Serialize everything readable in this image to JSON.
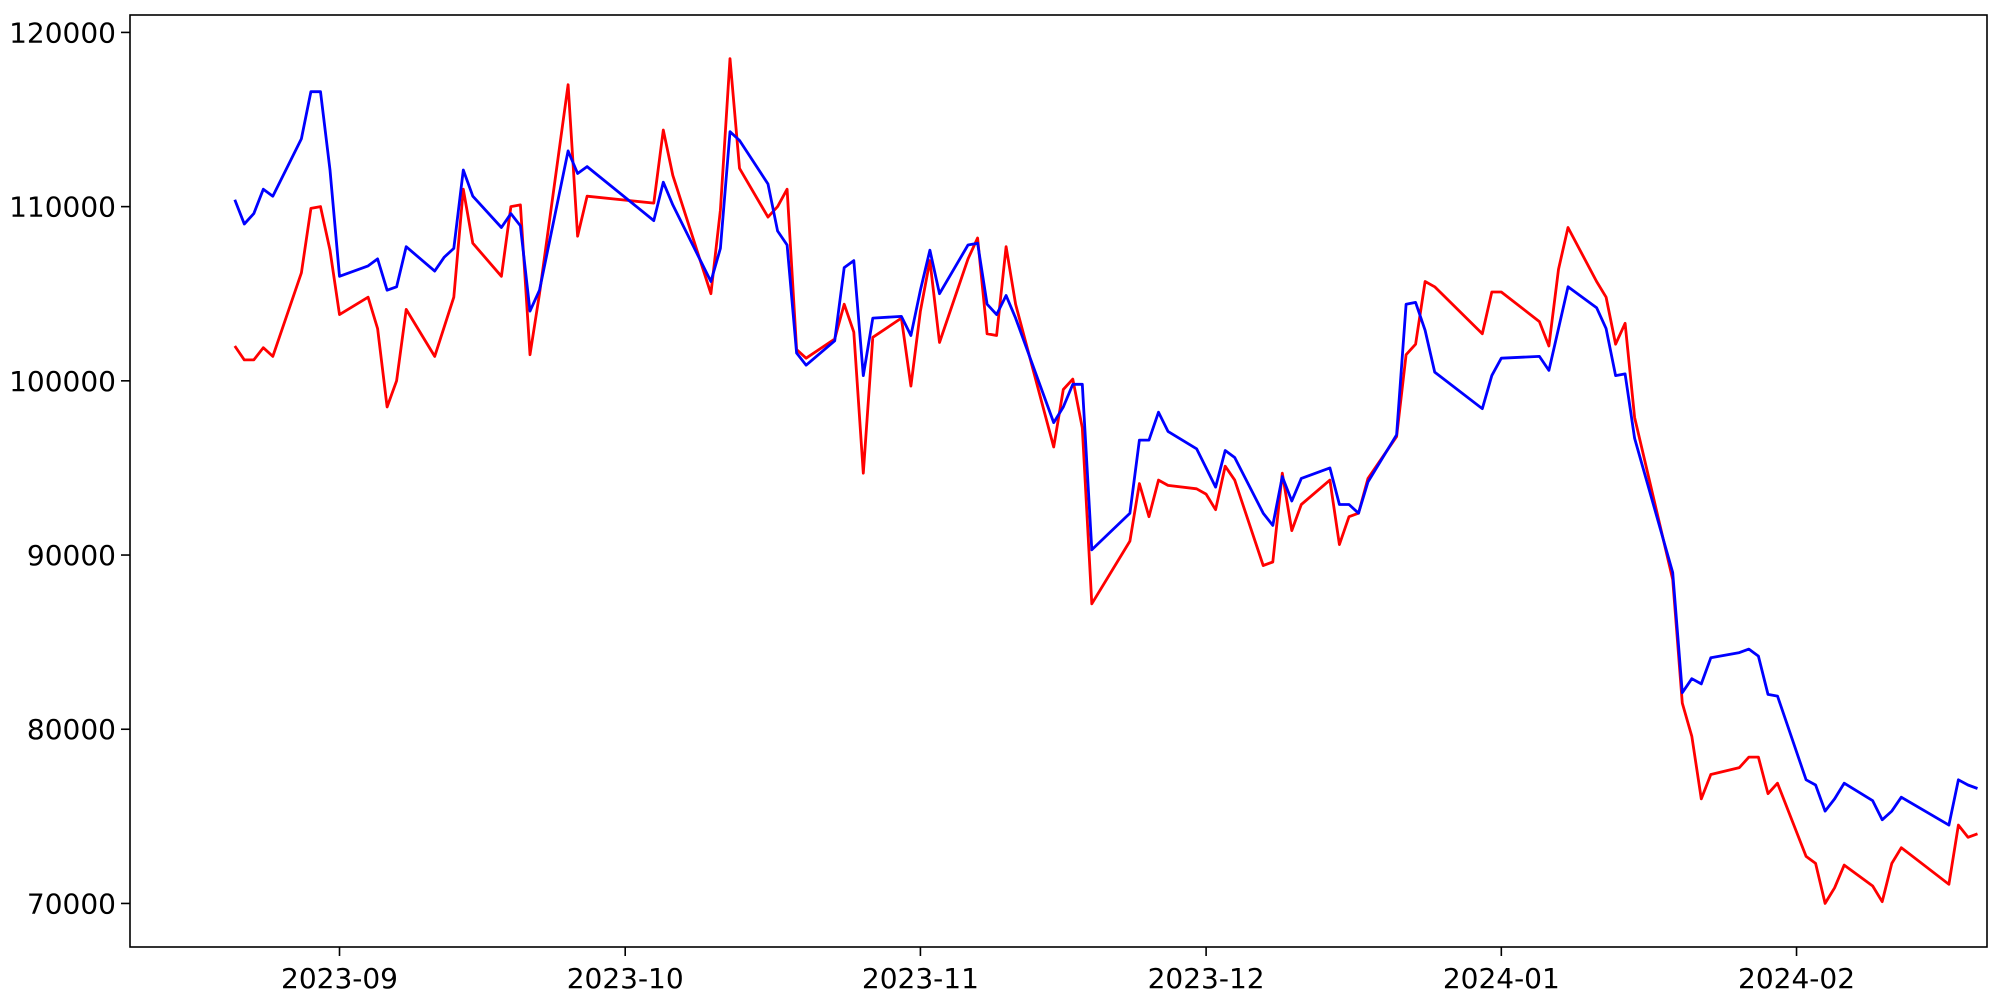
{
  "chart_data": {
    "type": "line",
    "title": "",
    "xlabel": "",
    "ylabel": "",
    "x_axis_type": "date",
    "xlim": [
      "2023-08-10",
      "2024-02-21"
    ],
    "ylim": [
      67500,
      121000
    ],
    "grid": false,
    "x_ticks": [
      "2023-09",
      "2023-10",
      "2023-11",
      "2023-12",
      "2024-01",
      "2024-02"
    ],
    "x_tick_dates": [
      "2023-09-01",
      "2023-10-01",
      "2023-11-01",
      "2023-12-01",
      "2024-01-01",
      "2024-02-01"
    ],
    "y_ticks": [
      70000,
      80000,
      90000,
      100000,
      110000,
      120000
    ],
    "y_tick_labels": [
      "70000",
      "80000",
      "90000",
      "100000",
      "110000",
      "120000"
    ],
    "series": [
      {
        "color": "#ff0000",
        "points": [
          [
            "2023-08-21",
            102000
          ],
          [
            "2023-08-22",
            101200
          ],
          [
            "2023-08-23",
            101200
          ],
          [
            "2023-08-24",
            101900
          ],
          [
            "2023-08-25",
            101400
          ],
          [
            "2023-08-28",
            106200
          ],
          [
            "2023-08-29",
            109900
          ],
          [
            "2023-08-30",
            110000
          ],
          [
            "2023-08-31",
            107500
          ],
          [
            "2023-09-01",
            103800
          ],
          [
            "2023-09-04",
            104800
          ],
          [
            "2023-09-05",
            103000
          ],
          [
            "2023-09-06",
            98500
          ],
          [
            "2023-09-07",
            100000
          ],
          [
            "2023-09-08",
            104100
          ],
          [
            "2023-09-11",
            101400
          ],
          [
            "2023-09-13",
            104800
          ],
          [
            "2023-09-14",
            111000
          ],
          [
            "2023-09-15",
            107900
          ],
          [
            "2023-09-18",
            106000
          ],
          [
            "2023-09-19",
            110000
          ],
          [
            "2023-09-20",
            110100
          ],
          [
            "2023-09-21",
            101500
          ],
          [
            "2023-09-22",
            105000
          ],
          [
            "2023-09-25",
            117000
          ],
          [
            "2023-09-26",
            108300
          ],
          [
            "2023-09-27",
            110600
          ],
          [
            "2023-10-04",
            110200
          ],
          [
            "2023-10-05",
            114400
          ],
          [
            "2023-10-06",
            111800
          ],
          [
            "2023-10-10",
            105000
          ],
          [
            "2023-10-11",
            109800
          ],
          [
            "2023-10-12",
            118500
          ],
          [
            "2023-10-13",
            112200
          ],
          [
            "2023-10-16",
            109400
          ],
          [
            "2023-10-17",
            110000
          ],
          [
            "2023-10-18",
            111000
          ],
          [
            "2023-10-19",
            101800
          ],
          [
            "2023-10-20",
            101300
          ],
          [
            "2023-10-23",
            102400
          ],
          [
            "2023-10-24",
            104400
          ],
          [
            "2023-10-25",
            102800
          ],
          [
            "2023-10-26",
            94700
          ],
          [
            "2023-10-27",
            102500
          ],
          [
            "2023-10-30",
            103600
          ],
          [
            "2023-10-31",
            99700
          ],
          [
            "2023-11-01",
            104000
          ],
          [
            "2023-11-02",
            106900
          ],
          [
            "2023-11-03",
            102200
          ],
          [
            "2023-11-06",
            107000
          ],
          [
            "2023-11-07",
            108200
          ],
          [
            "2023-11-08",
            102700
          ],
          [
            "2023-11-09",
            102600
          ],
          [
            "2023-11-10",
            107700
          ],
          [
            "2023-11-11",
            104400
          ],
          [
            "2023-11-15",
            96200
          ],
          [
            "2023-11-16",
            99500
          ],
          [
            "2023-11-17",
            100100
          ],
          [
            "2023-11-18",
            97300
          ],
          [
            "2023-11-19",
            87200
          ],
          [
            "2023-11-23",
            90800
          ],
          [
            "2023-11-24",
            94100
          ],
          [
            "2023-11-25",
            92200
          ],
          [
            "2023-11-26",
            94300
          ],
          [
            "2023-11-27",
            94000
          ],
          [
            "2023-11-30",
            93800
          ],
          [
            "2023-12-01",
            93500
          ],
          [
            "2023-12-02",
            92600
          ],
          [
            "2023-12-03",
            95100
          ],
          [
            "2023-12-04",
            94300
          ],
          [
            "2023-12-07",
            89400
          ],
          [
            "2023-12-08",
            89600
          ],
          [
            "2023-12-09",
            94700
          ],
          [
            "2023-12-10",
            91400
          ],
          [
            "2023-12-11",
            92900
          ],
          [
            "2023-12-14",
            94300
          ],
          [
            "2023-12-15",
            90600
          ],
          [
            "2023-12-16",
            92200
          ],
          [
            "2023-12-17",
            92400
          ],
          [
            "2023-12-18",
            94400
          ],
          [
            "2023-12-21",
            96800
          ],
          [
            "2023-12-22",
            101500
          ],
          [
            "2023-12-23",
            102100
          ],
          [
            "2023-12-24",
            105700
          ],
          [
            "2023-12-25",
            105400
          ],
          [
            "2023-12-30",
            102700
          ],
          [
            "2023-12-31",
            105100
          ],
          [
            "2024-01-01",
            105100
          ],
          [
            "2024-01-05",
            103400
          ],
          [
            "2024-01-06",
            102000
          ],
          [
            "2024-01-07",
            106400
          ],
          [
            "2024-01-08",
            108800
          ],
          [
            "2024-01-11",
            105700
          ],
          [
            "2024-01-12",
            104800
          ],
          [
            "2024-01-13",
            102100
          ],
          [
            "2024-01-14",
            103300
          ],
          [
            "2024-01-15",
            97900
          ],
          [
            "2024-01-19",
            88600
          ],
          [
            "2024-01-20",
            81500
          ],
          [
            "2024-01-21",
            79600
          ],
          [
            "2024-01-22",
            76000
          ],
          [
            "2024-01-23",
            77400
          ],
          [
            "2024-01-26",
            77800
          ],
          [
            "2024-01-27",
            78400
          ],
          [
            "2024-01-28",
            78400
          ],
          [
            "2024-01-29",
            76300
          ],
          [
            "2024-01-30",
            76900
          ],
          [
            "2024-02-02",
            72700
          ],
          [
            "2024-02-03",
            72300
          ],
          [
            "2024-02-04",
            70000
          ],
          [
            "2024-02-05",
            70900
          ],
          [
            "2024-02-06",
            72200
          ],
          [
            "2024-02-09",
            71000
          ],
          [
            "2024-02-10",
            70100
          ],
          [
            "2024-02-11",
            72300
          ],
          [
            "2024-02-12",
            73200
          ],
          [
            "2024-02-17",
            71100
          ],
          [
            "2024-02-18",
            74500
          ],
          [
            "2024-02-19",
            73800
          ],
          [
            "2024-02-20",
            74000
          ]
        ]
      },
      {
        "color": "#0000ff",
        "points": [
          [
            "2023-08-21",
            110400
          ],
          [
            "2023-08-22",
            109000
          ],
          [
            "2023-08-23",
            109600
          ],
          [
            "2023-08-24",
            111000
          ],
          [
            "2023-08-25",
            110600
          ],
          [
            "2023-08-28",
            113900
          ],
          [
            "2023-08-29",
            116600
          ],
          [
            "2023-08-30",
            116600
          ],
          [
            "2023-08-31",
            112100
          ],
          [
            "2023-09-01",
            106000
          ],
          [
            "2023-09-04",
            106600
          ],
          [
            "2023-09-05",
            107000
          ],
          [
            "2023-09-06",
            105200
          ],
          [
            "2023-09-07",
            105400
          ],
          [
            "2023-09-08",
            107700
          ],
          [
            "2023-09-11",
            106300
          ],
          [
            "2023-09-12",
            107100
          ],
          [
            "2023-09-13",
            107600
          ],
          [
            "2023-09-14",
            112100
          ],
          [
            "2023-09-15",
            110600
          ],
          [
            "2023-09-18",
            108800
          ],
          [
            "2023-09-19",
            109600
          ],
          [
            "2023-09-20",
            108900
          ],
          [
            "2023-09-21",
            104000
          ],
          [
            "2023-09-22",
            105200
          ],
          [
            "2023-09-25",
            113200
          ],
          [
            "2023-09-26",
            111900
          ],
          [
            "2023-09-27",
            112300
          ],
          [
            "2023-10-04",
            109200
          ],
          [
            "2023-10-05",
            111400
          ],
          [
            "2023-10-06",
            110100
          ],
          [
            "2023-10-10",
            105700
          ],
          [
            "2023-10-11",
            107600
          ],
          [
            "2023-10-12",
            114300
          ],
          [
            "2023-10-13",
            113800
          ],
          [
            "2023-10-16",
            111300
          ],
          [
            "2023-10-17",
            108600
          ],
          [
            "2023-10-18",
            107800
          ],
          [
            "2023-10-19",
            101600
          ],
          [
            "2023-10-20",
            100900
          ],
          [
            "2023-10-23",
            102300
          ],
          [
            "2023-10-24",
            106500
          ],
          [
            "2023-10-25",
            106900
          ],
          [
            "2023-10-26",
            100300
          ],
          [
            "2023-10-27",
            103600
          ],
          [
            "2023-10-30",
            103700
          ],
          [
            "2023-10-31",
            102600
          ],
          [
            "2023-11-01",
            105200
          ],
          [
            "2023-11-02",
            107500
          ],
          [
            "2023-11-03",
            105000
          ],
          [
            "2023-11-06",
            107800
          ],
          [
            "2023-11-07",
            107900
          ],
          [
            "2023-11-08",
            104400
          ],
          [
            "2023-11-09",
            103800
          ],
          [
            "2023-11-10",
            104900
          ],
          [
            "2023-11-11",
            103600
          ],
          [
            "2023-11-15",
            97600
          ],
          [
            "2023-11-16",
            98500
          ],
          [
            "2023-11-17",
            99800
          ],
          [
            "2023-11-18",
            99800
          ],
          [
            "2023-11-19",
            90300
          ],
          [
            "2023-11-23",
            92400
          ],
          [
            "2023-11-24",
            96600
          ],
          [
            "2023-11-25",
            96600
          ],
          [
            "2023-11-26",
            98200
          ],
          [
            "2023-11-27",
            97100
          ],
          [
            "2023-11-30",
            96100
          ],
          [
            "2023-12-01",
            95000
          ],
          [
            "2023-12-02",
            93900
          ],
          [
            "2023-12-03",
            96000
          ],
          [
            "2023-12-04",
            95600
          ],
          [
            "2023-12-07",
            92400
          ],
          [
            "2023-12-08",
            91700
          ],
          [
            "2023-12-09",
            94500
          ],
          [
            "2023-12-10",
            93100
          ],
          [
            "2023-12-11",
            94400
          ],
          [
            "2023-12-14",
            95000
          ],
          [
            "2023-12-15",
            92900
          ],
          [
            "2023-12-16",
            92900
          ],
          [
            "2023-12-17",
            92400
          ],
          [
            "2023-12-18",
            94200
          ],
          [
            "2023-12-21",
            96900
          ],
          [
            "2023-12-22",
            104400
          ],
          [
            "2023-12-23",
            104500
          ],
          [
            "2023-12-24",
            102900
          ],
          [
            "2023-12-25",
            100500
          ],
          [
            "2023-12-30",
            98400
          ],
          [
            "2023-12-31",
            100300
          ],
          [
            "2024-01-01",
            101300
          ],
          [
            "2024-01-05",
            101400
          ],
          [
            "2024-01-06",
            100600
          ],
          [
            "2024-01-07",
            103000
          ],
          [
            "2024-01-08",
            105400
          ],
          [
            "2024-01-11",
            104200
          ],
          [
            "2024-01-12",
            103000
          ],
          [
            "2024-01-13",
            100300
          ],
          [
            "2024-01-14",
            100400
          ],
          [
            "2024-01-15",
            96700
          ],
          [
            "2024-01-19",
            89000
          ],
          [
            "2024-01-20",
            82100
          ],
          [
            "2024-01-21",
            82900
          ],
          [
            "2024-01-22",
            82600
          ],
          [
            "2024-01-23",
            84100
          ],
          [
            "2024-01-26",
            84400
          ],
          [
            "2024-01-27",
            84600
          ],
          [
            "2024-01-28",
            84200
          ],
          [
            "2024-01-29",
            82000
          ],
          [
            "2024-01-30",
            81900
          ],
          [
            "2024-02-02",
            77100
          ],
          [
            "2024-02-03",
            76800
          ],
          [
            "2024-02-04",
            75300
          ],
          [
            "2024-02-05",
            76000
          ],
          [
            "2024-02-06",
            76900
          ],
          [
            "2024-02-09",
            75900
          ],
          [
            "2024-02-10",
            74800
          ],
          [
            "2024-02-11",
            75300
          ],
          [
            "2024-02-12",
            76100
          ],
          [
            "2024-02-17",
            74500
          ],
          [
            "2024-02-18",
            77100
          ],
          [
            "2024-02-19",
            76800
          ],
          [
            "2024-02-20",
            76600
          ]
        ]
      }
    ]
  }
}
